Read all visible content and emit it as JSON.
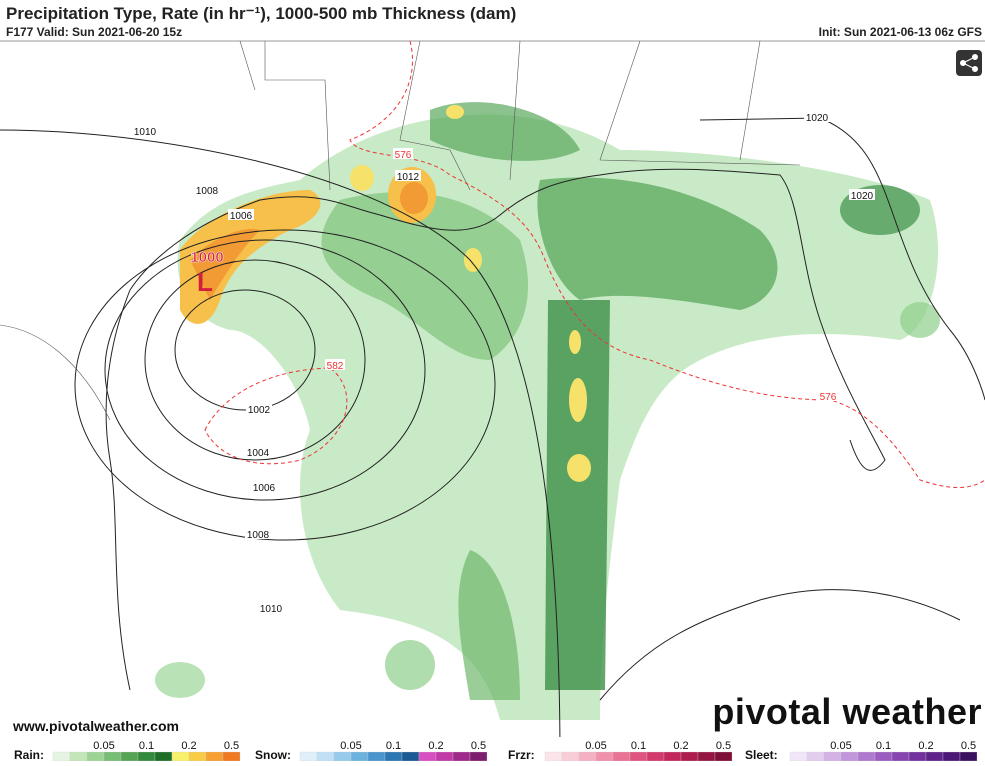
{
  "header": {
    "title": "Precipitation Type, Rate (in hr⁻¹), 1000-500 mb Thickness (dam)",
    "valid": "F177 Valid: Sun 2021-06-20 15z",
    "init": "Init: Sun 2021-06-13 06z GFS"
  },
  "pressure_labels": [
    1010,
    1008,
    1006,
    1012,
    1020,
    1020,
    1002,
    1004,
    1006,
    1008,
    1010
  ],
  "thickness_labels": [
    576,
    582,
    576
  ],
  "low": {
    "pressure": 1000,
    "symbol": "L"
  },
  "footer": {
    "site": "www.pivotalweather.com",
    "brand": "pivotal weather"
  },
  "legend": [
    {
      "name": "Rain:",
      "ticks": [
        0.05,
        0.1,
        0.2,
        0.5
      ],
      "colors": [
        "#e6f5e1",
        "#c2e6b8",
        "#9ed396",
        "#78bd74",
        "#54a454",
        "#348a3c",
        "#1e6e2a",
        "#f7f06a",
        "#f8cc45",
        "#f5a030",
        "#f07a22"
      ]
    },
    {
      "name": "Snow:",
      "ticks": [
        0.05,
        0.1,
        0.2,
        0.5
      ],
      "colors": [
        "#e0f0fa",
        "#bfe0f5",
        "#96cbec",
        "#6db2de",
        "#4a95cb",
        "#2c76b2",
        "#1b5a94",
        "#d74fc3",
        "#c13aa8",
        "#a02a8c",
        "#7d1f6e"
      ]
    },
    {
      "name": "Frzr:",
      "ticks": [
        0.05,
        0.1,
        0.2,
        0.5
      ],
      "colors": [
        "#fbe4ea",
        "#f8cdd8",
        "#f4b1c2",
        "#ef92aa",
        "#e87395",
        "#df5480",
        "#d23a6c",
        "#c2285c",
        "#ad1d4e",
        "#951542",
        "#7d0f38"
      ]
    },
    {
      "name": "Sleet:",
      "ticks": [
        0.05,
        0.1,
        0.2,
        0.5
      ],
      "colors": [
        "#f1e6f7",
        "#e3cdef",
        "#d3b2e6",
        "#c296db",
        "#af79cf",
        "#9c5dc1",
        "#8845b1",
        "#73329e",
        "#5f238a",
        "#4c1876",
        "#3a1061"
      ]
    }
  ]
}
